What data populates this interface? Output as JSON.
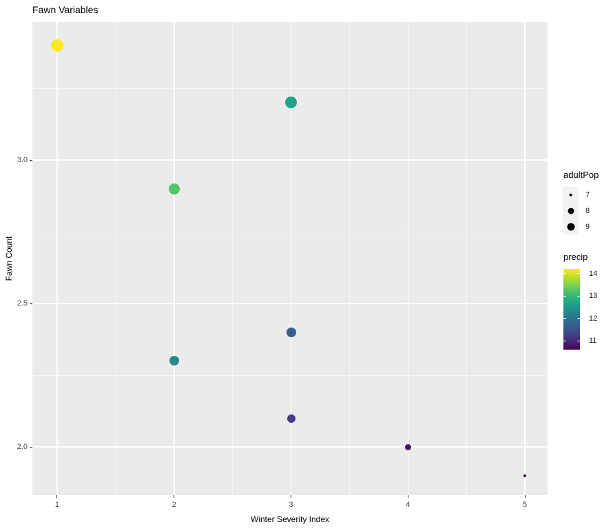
{
  "title": "Fawn Variables",
  "chart_data": {
    "type": "scatter",
    "title": "Fawn Variables",
    "xlabel": "Winter Severity Index",
    "ylabel": "Fawn Count",
    "xlim": [
      0.788,
      5.194
    ],
    "ylim": [
      1.832,
      3.481
    ],
    "x_ticks": [
      "1",
      "2",
      "3",
      "4",
      "5"
    ],
    "y_ticks": [
      "2.0",
      "2.5",
      "3.0"
    ],
    "x_minor": [
      1.5,
      2.5,
      3.5,
      4.5
    ],
    "y_minor": [
      2.25,
      2.75,
      3.25
    ],
    "grid": true,
    "panel_bg": "#EBEBEB",
    "grid_color": "#FFFFFF",
    "points": [
      {
        "x": 1,
        "y": 3.4,
        "adultPop": 9.7,
        "precip": 14.2,
        "color": "#FDE725",
        "radius": 9
      },
      {
        "x": 3,
        "y": 3.2,
        "adultPop": 9.6,
        "precip": 12.6,
        "color": "#20A386",
        "radius": 8.5
      },
      {
        "x": 2,
        "y": 2.9,
        "adultPop": 9.2,
        "precip": 13.2,
        "color": "#54C568",
        "radius": 8
      },
      {
        "x": 3,
        "y": 2.4,
        "adultPop": 8.7,
        "precip": 11.5,
        "color": "#3A5E8C",
        "radius": 7
      },
      {
        "x": 2,
        "y": 2.3,
        "adultPop": 8.5,
        "precip": 12.3,
        "color": "#238A8D",
        "radius": 7.2
      },
      {
        "x": 3,
        "y": 2.1,
        "adultPop": 7.9,
        "precip": 11.2,
        "color": "#443B84",
        "radius": 6
      },
      {
        "x": 4,
        "y": 2.0,
        "adultPop": 7.2,
        "precip": 10.8,
        "color": "#471567",
        "radius": 4.5
      },
      {
        "x": 5,
        "y": 1.9,
        "adultPop": 6.8,
        "precip": 10.6,
        "color": "#440154",
        "radius": 2.2
      }
    ],
    "size_legend": {
      "title": "adultPop",
      "entries": [
        {
          "label": "7",
          "radius": 2.4
        },
        {
          "label": "8",
          "radius": 4.5
        },
        {
          "label": "9",
          "radius": 5.5
        }
      ]
    },
    "color_legend": {
      "title": "precip",
      "ticks": [
        "14",
        "13",
        "12",
        "11"
      ],
      "tick_values": [
        14,
        13,
        12,
        11
      ],
      "domain": [
        10.6,
        14.2
      ],
      "palette": "viridis",
      "colors_top_to_bottom": [
        "#FDE725",
        "#B5DE2B",
        "#6CCE59",
        "#35B779",
        "#1F9E89",
        "#26828E",
        "#31688E",
        "#3E4A89",
        "#482878",
        "#440154"
      ]
    }
  }
}
